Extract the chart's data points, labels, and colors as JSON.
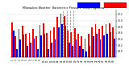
{
  "title": "Milwaukee Weather  Barometric Pressure  Daily High/Low",
  "background_color": "#ffffff",
  "legend_high_color": "#ff0000",
  "legend_low_color": "#0000ff",
  "bar_width": 0.4,
  "dashed_line_indices": [
    14,
    15,
    16,
    17
  ],
  "xlabels": [
    "1",
    "2",
    "3",
    "4",
    "5",
    "6",
    "7",
    "8",
    "9",
    "10",
    "11",
    "12",
    "13",
    "14",
    "15",
    "16",
    "17",
    "18",
    "19",
    "20",
    "21",
    "22",
    "23",
    "24",
    "25",
    "26",
    "27",
    "28",
    "29",
    "30"
  ],
  "high_values": [
    29.94,
    29.5,
    29.72,
    29.82,
    29.56,
    29.6,
    29.72,
    29.5,
    29.85,
    29.9,
    29.6,
    29.68,
    29.78,
    30.12,
    30.22,
    30.14,
    29.68,
    29.62,
    29.74,
    29.58,
    29.48,
    29.42,
    29.58,
    29.78,
    29.88,
    29.72,
    29.82,
    29.88,
    29.92,
    29.78
  ],
  "low_values": [
    29.68,
    29.08,
    29.38,
    29.54,
    29.18,
    29.28,
    29.42,
    29.08,
    29.52,
    29.58,
    29.08,
    29.28,
    29.38,
    29.78,
    29.88,
    29.82,
    29.28,
    29.18,
    29.38,
    29.18,
    29.08,
    28.98,
    29.18,
    29.48,
    29.58,
    29.38,
    29.52,
    29.58,
    29.62,
    29.42
  ],
  "ylim_min": 28.8,
  "ylim_max": 30.35,
  "yticks": [
    29.0,
    29.2,
    29.4,
    29.6,
    29.8,
    30.0,
    30.2
  ],
  "ytick_labels": [
    "29.0",
    "29.2",
    "29.4",
    "29.6",
    "29.8",
    "30.0",
    "30.2"
  ]
}
